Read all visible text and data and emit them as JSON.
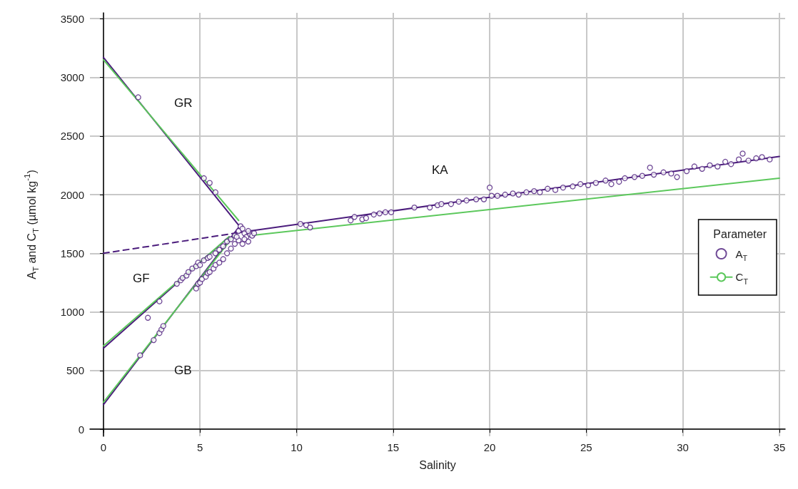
{
  "chart_data": {
    "type": "scatter",
    "xlabel": "Salinity",
    "ylabel": "A$_{T}$ and C$_{T}$ (µmol kg$^{-1}$)",
    "legend_title": "Parameter",
    "legend": "right",
    "grid": true,
    "xlim": [
      -0.7,
      35.3
    ],
    "ylim": [
      -60,
      3550
    ],
    "xticks": [
      0,
      5,
      10,
      15,
      20,
      25,
      30,
      35
    ],
    "yticks": [
      0,
      500,
      1000,
      1500,
      2000,
      2500,
      3000,
      3500
    ],
    "annotations": [
      "GR",
      "GF",
      "GB",
      "KA"
    ],
    "series": [
      {
        "name": "A$_{T}$",
        "marker": "circle",
        "color": "#4b1c7c",
        "x": [
          1.8,
          5.2,
          5.5,
          5.8,
          2.3,
          2.9,
          1.9,
          2.6,
          2.9,
          3.0,
          3.1,
          3.8,
          4.0,
          4.1,
          4.3,
          4.4,
          4.6,
          4.8,
          4.9,
          5.0,
          5.2,
          5.4,
          5.5,
          5.8,
          6.0,
          6.2,
          6.4,
          4.8,
          4.9,
          5.0,
          5.1,
          5.3,
          5.4,
          5.5,
          5.7,
          5.8,
          6.0,
          6.2,
          6.4,
          6.6,
          6.8,
          6.6,
          6.8,
          7.0,
          7.1,
          7.2,
          7.3,
          7.4,
          7.5,
          7.6,
          7.7,
          7.8,
          7.0,
          7.2,
          6.9,
          7.5,
          7.3,
          10.2,
          10.5,
          10.7,
          12.8,
          13.0,
          13.4,
          13.6,
          14.0,
          14.3,
          14.6,
          14.9,
          16.1,
          16.9,
          17.3,
          17.5,
          18.0,
          18.4,
          18.8,
          19.3,
          19.7,
          20.0,
          20.1,
          20.4,
          20.8,
          21.2,
          21.5,
          21.9,
          22.3,
          22.6,
          23.0,
          23.4,
          23.8,
          24.3,
          24.7,
          25.1,
          25.5,
          26.0,
          26.3,
          26.7,
          27.0,
          27.5,
          27.9,
          28.3,
          28.5,
          29.0,
          29.4,
          29.7,
          30.2,
          30.6,
          31.0,
          31.4,
          31.8,
          32.2,
          32.5,
          32.9,
          33.1,
          33.4,
          33.8,
          34.1,
          34.5
        ],
        "values": [
          2830,
          2140,
          2100,
          2020,
          950,
          1090,
          630,
          760,
          820,
          850,
          880,
          1240,
          1270,
          1290,
          1310,
          1340,
          1370,
          1390,
          1420,
          1400,
          1440,
          1460,
          1470,
          1500,
          1530,
          1560,
          1600,
          1200,
          1240,
          1250,
          1280,
          1300,
          1330,
          1340,
          1370,
          1400,
          1420,
          1450,
          1500,
          1540,
          1580,
          1620,
          1650,
          1690,
          1730,
          1710,
          1670,
          1640,
          1600,
          1660,
          1650,
          1670,
          1610,
          1580,
          1640,
          1690,
          1620,
          1750,
          1740,
          1720,
          1780,
          1810,
          1790,
          1800,
          1830,
          1840,
          1850,
          1850,
          1890,
          1890,
          1910,
          1920,
          1920,
          1940,
          1950,
          1960,
          1960,
          2060,
          1990,
          1990,
          2000,
          2010,
          2000,
          2020,
          2030,
          2020,
          2050,
          2040,
          2060,
          2070,
          2090,
          2080,
          2100,
          2120,
          2090,
          2110,
          2140,
          2150,
          2160,
          2230,
          2170,
          2190,
          2180,
          2150,
          2200,
          2240,
          2220,
          2250,
          2240,
          2280,
          2260,
          2300,
          2350,
          2290,
          2310,
          2320,
          2300
        ]
      },
      {
        "type": "line",
        "color": "#4b1c7c",
        "x": [
          0,
          7
        ],
        "values": [
          3170,
          1740
        ]
      },
      {
        "type": "line",
        "color": "#4b1c7c",
        "x": [
          0,
          6.5
        ],
        "values": [
          690,
          1640
        ]
      },
      {
        "type": "line",
        "color": "#4b1c7c",
        "x": [
          0,
          7
        ],
        "values": [
          210,
          1720
        ]
      },
      {
        "type": "line",
        "color": "#4b1c7c",
        "x": [
          7,
          35
        ],
        "values": [
          1676,
          2325
        ]
      },
      {
        "type": "line",
        "color": "#4b1c7c",
        "x": [
          0,
          7
        ],
        "values": [
          1500,
          1676
        ],
        "line_style": "dashed"
      },
      {
        "name": "C$_{T}$",
        "type": "line",
        "color": "#5cc85c",
        "x": [
          7.5,
          35
        ],
        "values": [
          1650,
          2140
        ]
      },
      {
        "type": "line",
        "color": "#5cc85c",
        "x": [
          0,
          7
        ],
        "values": [
          3150,
          1780
        ]
      },
      {
        "type": "line",
        "color": "#5cc85c",
        "x": [
          0,
          6.5
        ],
        "values": [
          710,
          1640
        ]
      },
      {
        "type": "line",
        "color": "#5cc85c",
        "x": [
          0,
          6.8
        ],
        "values": [
          230,
          1660
        ]
      }
    ]
  }
}
